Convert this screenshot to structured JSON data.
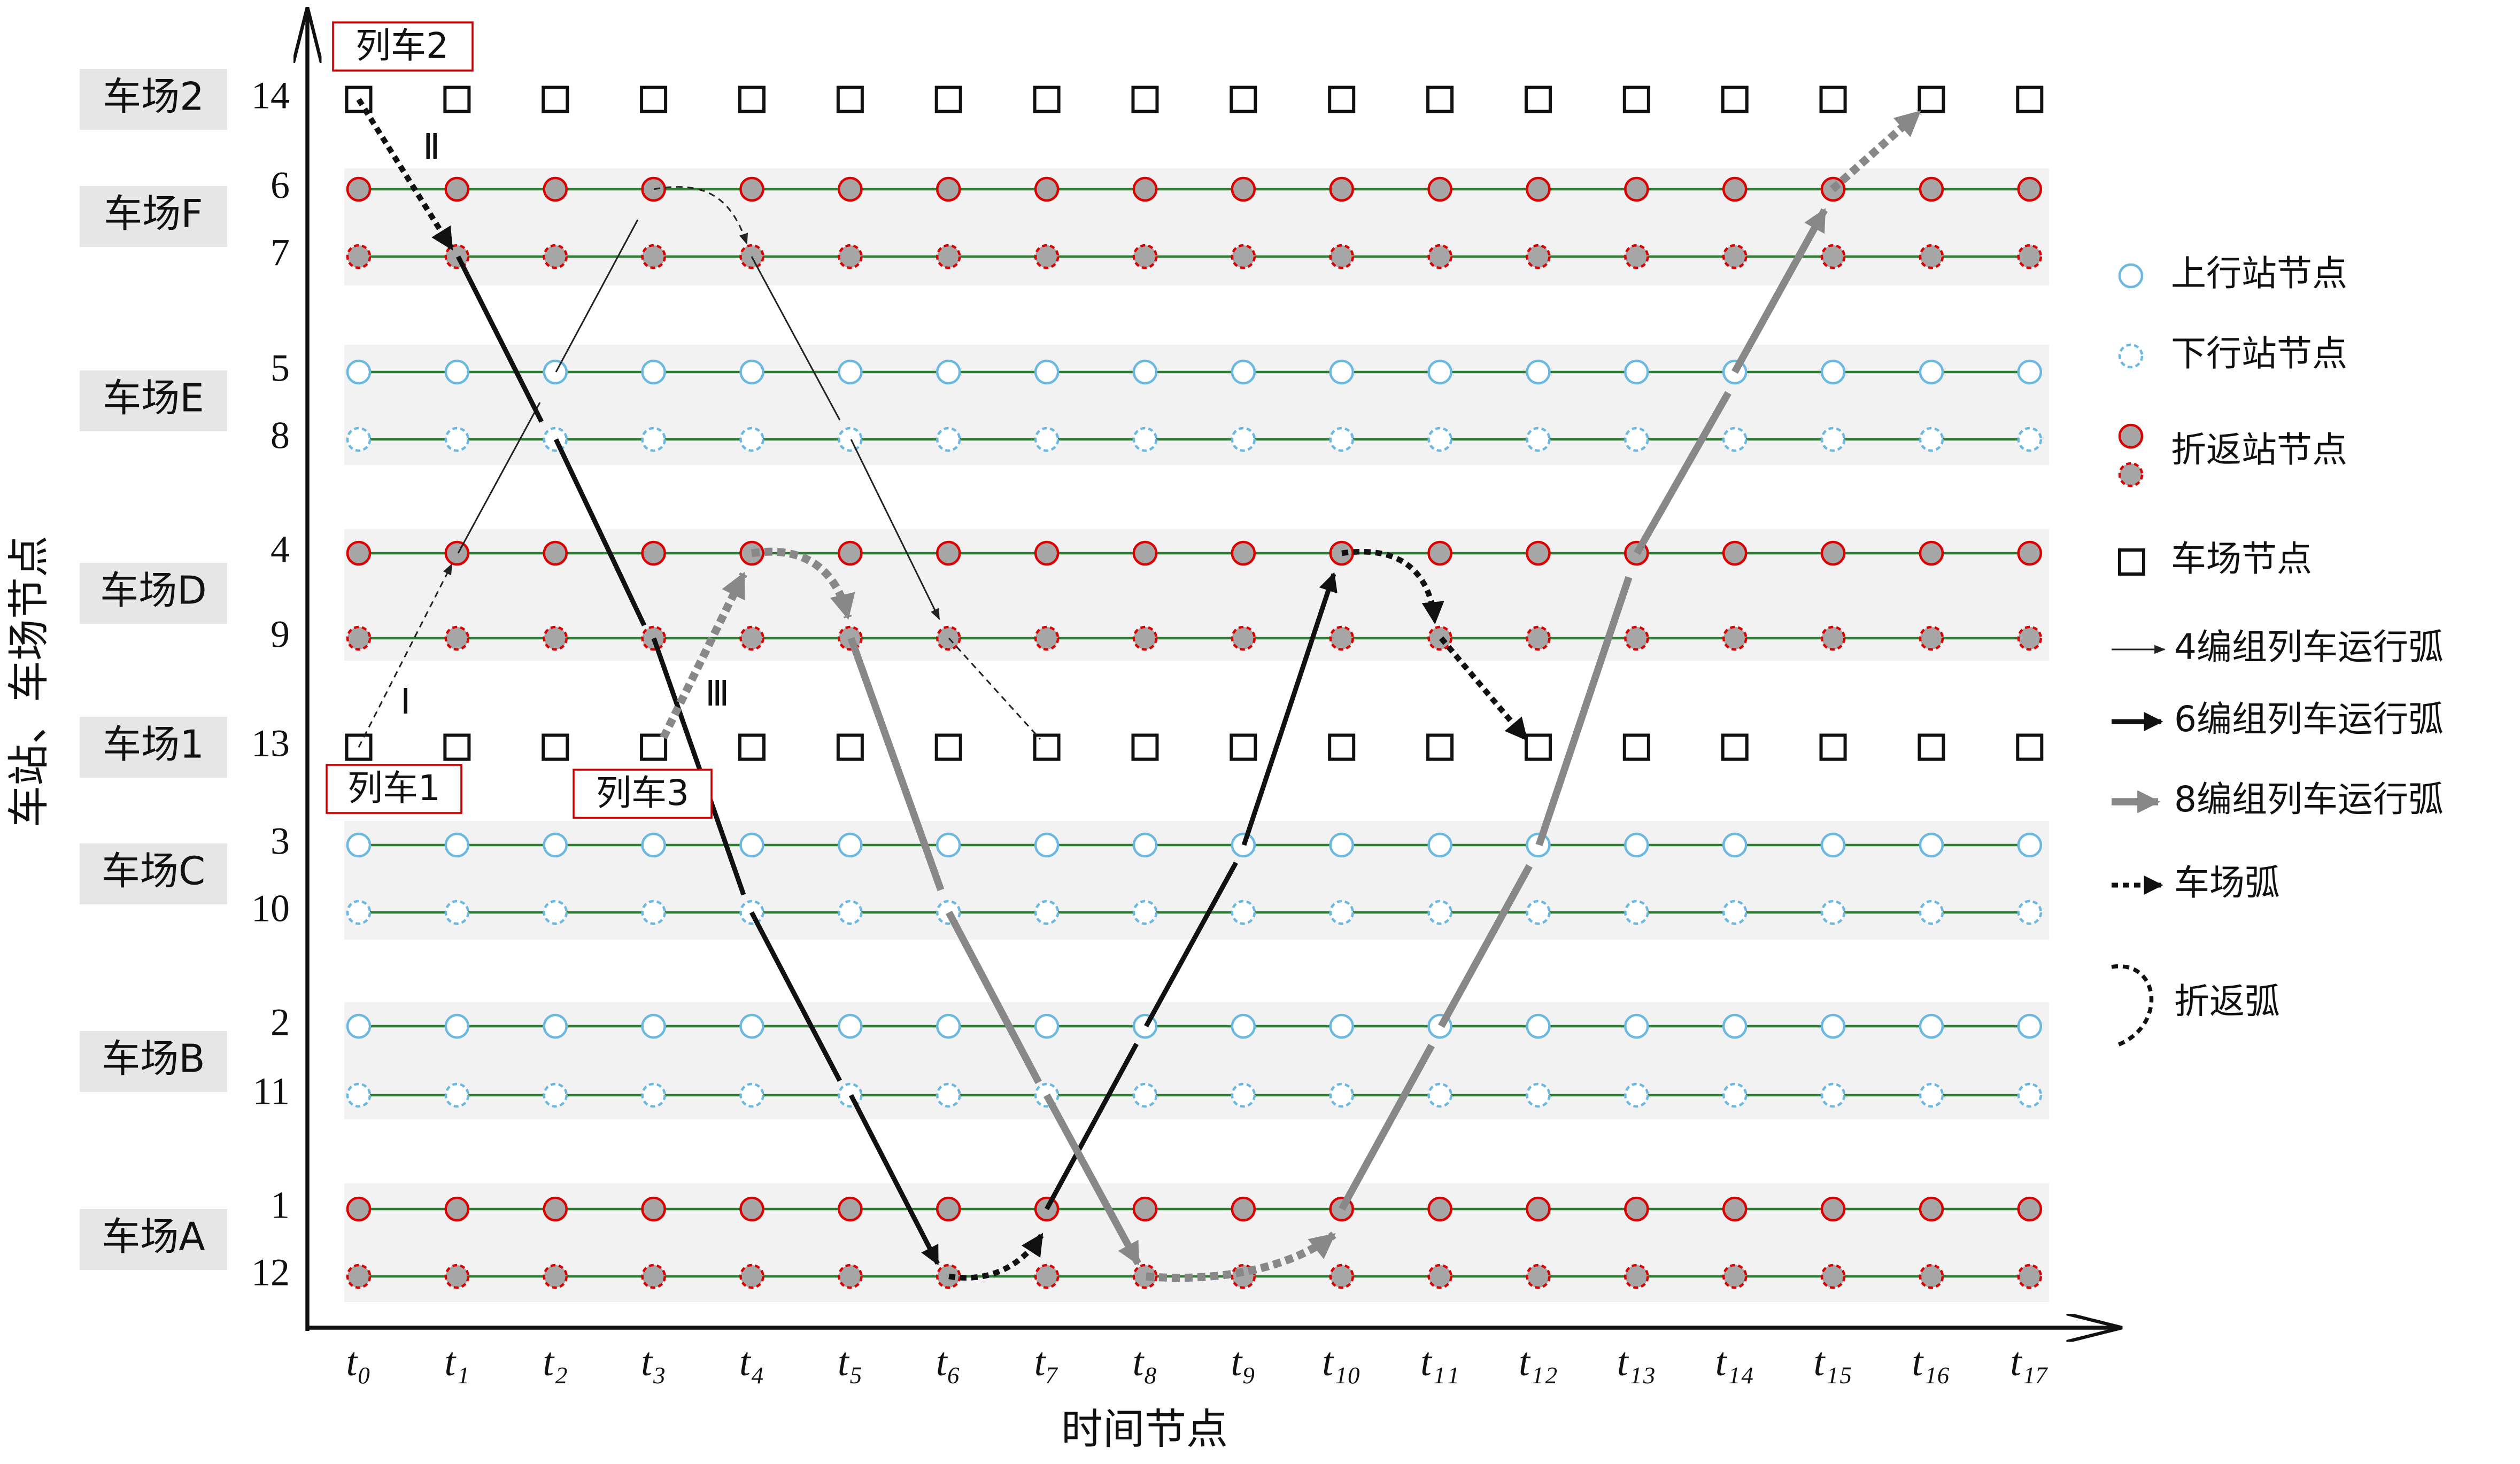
{
  "depots": [
    "车场2",
    "车场F",
    "车场E",
    "车场D",
    "车场1",
    "车场C",
    "车场B",
    "车场A"
  ],
  "rows": [
    "14",
    "6",
    "7",
    "5",
    "8",
    "4",
    "9",
    "13",
    "3",
    "10",
    "2",
    "11",
    "1",
    "12"
  ],
  "time_nodes": [
    "t₀",
    "t₁",
    "t₂",
    "t₃",
    "t₄",
    "t₅",
    "t₆",
    "t₇",
    "t₈",
    "t₉",
    "t₁₀",
    "t₁₁",
    "t₁₂",
    "t₁₃",
    "t₁₄",
    "t₁₅",
    "t₁₆",
    "t₁₇"
  ],
  "x_axis_label": "时间节点",
  "y_axis_label": "车站、车场节点",
  "trains": [
    "列车1",
    "列车2",
    "列车3"
  ],
  "route_marks": [
    "Ⅰ",
    "Ⅱ",
    "Ⅲ"
  ],
  "legend": [
    "上行站节点",
    "下行站节点",
    "折返站节点",
    "车场节点",
    "4编组列车运行弧",
    "6编组列车运行弧",
    "8编组列车运行弧",
    "车场弧",
    "折返弧"
  ]
}
